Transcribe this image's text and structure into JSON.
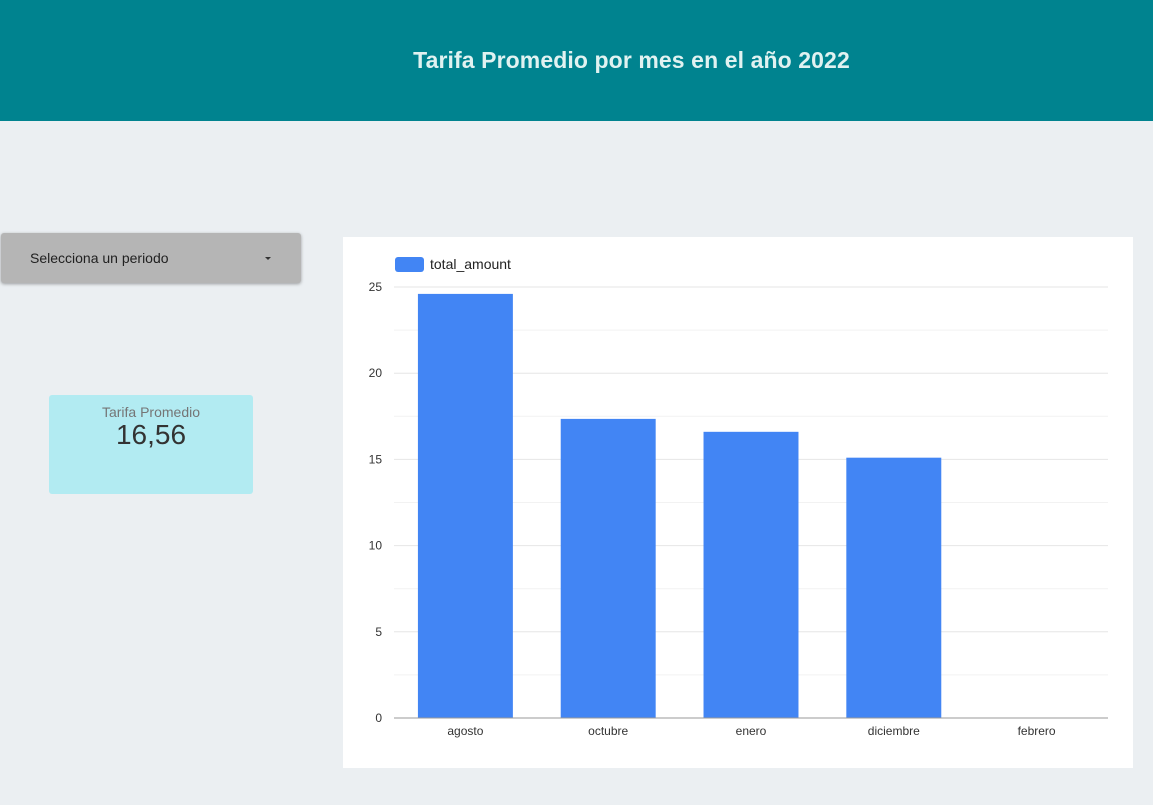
{
  "header": {
    "title": "Tarifa Promedio por mes en el año 2022"
  },
  "period_select": {
    "label": "Selecciona un periodo"
  },
  "kpi": {
    "label": "Tarifa Promedio",
    "value": "16,56"
  },
  "colors": {
    "header_bg": "#00838f",
    "bar": "#4285f4",
    "kpi_bg": "#b2ebf2"
  },
  "chart_data": {
    "type": "bar",
    "categories": [
      "agosto",
      "octubre",
      "enero",
      "diciembre",
      "febrero"
    ],
    "series": [
      {
        "name": "total_amount",
        "values": [
          24.6,
          17.35,
          16.6,
          15.1,
          0
        ]
      }
    ],
    "yticks": [
      "0",
      "5",
      "10",
      "15",
      "20",
      "25"
    ],
    "ylim": [
      0,
      25
    ],
    "grid": true,
    "legend": "top-left"
  }
}
